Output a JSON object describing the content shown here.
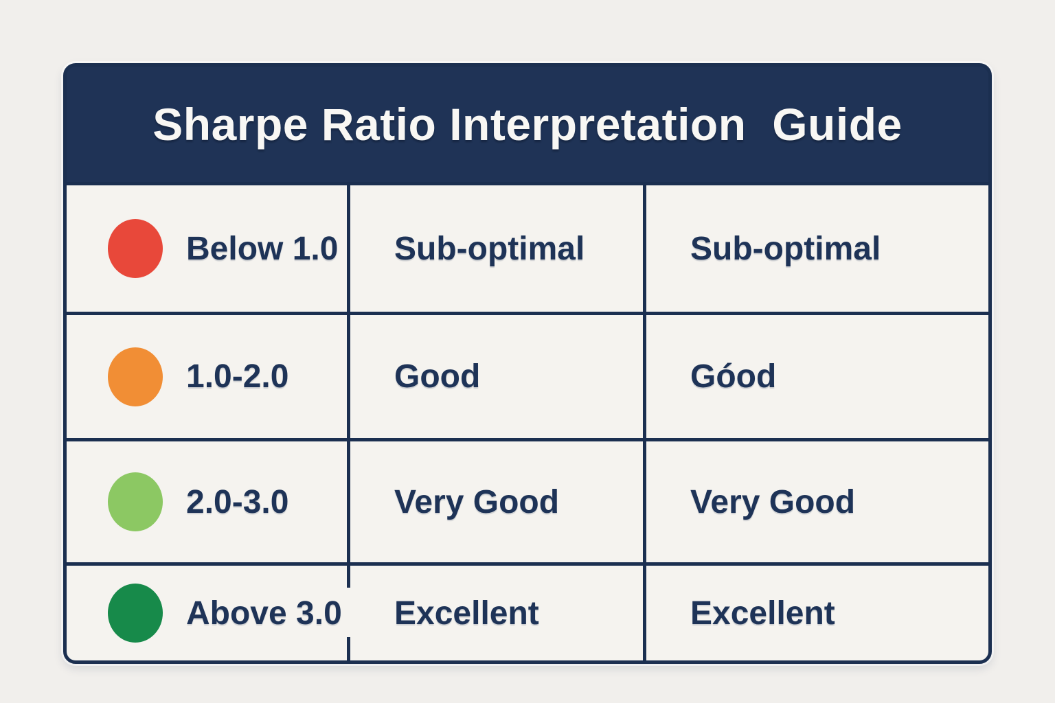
{
  "title": "Sharpe Ratio Interpretation  Guide",
  "colors": {
    "page_bg": "#f1efec",
    "cell_bg": "#f5f3ef",
    "header_bg": "#1f3356",
    "grid_line": "#1b2f50",
    "text": "#1e3357",
    "title_text": "#f8f7f4",
    "dot_red": "#e8483a",
    "dot_orange": "#f18e35",
    "dot_light_green": "#8cc863",
    "dot_dark_green": "#178a4a"
  },
  "table": {
    "rows": [
      {
        "dot_color": "#e8483a",
        "range": "Below 1.0",
        "rating": "Sub-optimal",
        "rating_repeat": "Sub-optimal"
      },
      {
        "dot_color": "#f18e35",
        "range": "1.0-2.0",
        "rating": "Good",
        "rating_repeat": "Góod"
      },
      {
        "dot_color": "#8cc863",
        "range": "2.0-3.0",
        "rating": "Very Good",
        "rating_repeat": "Very Good"
      },
      {
        "dot_color": "#178a4a",
        "range": "Above 3.0",
        "rating": "Excellent",
        "rating_repeat": "Excellent"
      }
    ]
  }
}
